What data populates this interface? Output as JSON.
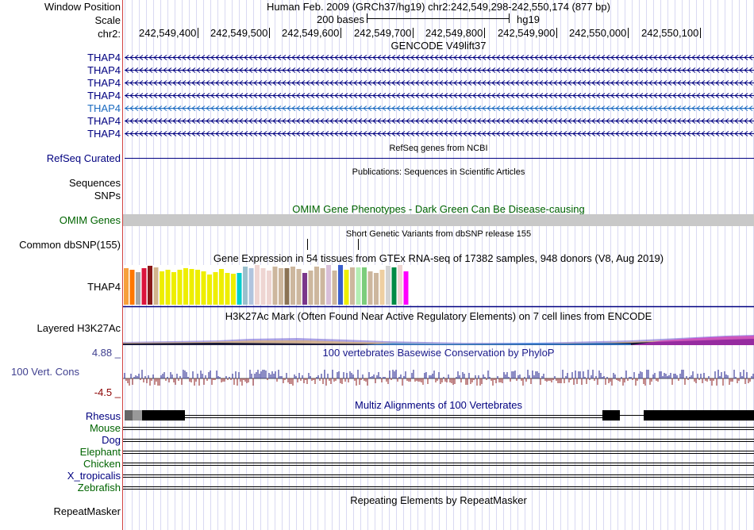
{
  "header": {
    "window_position_label": "Window Position",
    "scale_label": "Scale",
    "chr_label": "chr2:",
    "assembly_text": "Human Feb. 2009 (GRCh37/hg19)    chr2:242,549,298-242,550,174 (877 bp)",
    "scale_text": "200 bases",
    "scale_db": "hg19"
  },
  "ruler": {
    "positions": [
      "242,549,400",
      "242,549,500",
      "242,549,600",
      "242,549,700",
      "242,549,800",
      "242,549,900",
      "242,550,000",
      "242,550,100"
    ]
  },
  "tracks": {
    "gencode": {
      "title": "GENCODE V49lift37",
      "transcripts": [
        {
          "name": "THAP4",
          "color": "#000080"
        },
        {
          "name": "THAP4",
          "color": "#000080"
        },
        {
          "name": "THAP4",
          "color": "#000080"
        },
        {
          "name": "THAP4",
          "color": "#000080"
        },
        {
          "name": "THAP4",
          "color": "#1a6ac0"
        },
        {
          "name": "THAP4",
          "color": "#000080"
        },
        {
          "name": "THAP4",
          "color": "#000080"
        }
      ]
    },
    "refseq": {
      "label": "RefSeq Curated",
      "title": "RefSeq genes from NCBI"
    },
    "publications": {
      "title": "Publications: Sequences in Scientific Articles",
      "labels": [
        "Sequences",
        "SNPs"
      ]
    },
    "omim": {
      "label": "OMIM Genes",
      "title": "OMIM Gene Phenotypes - Dark Green Can Be Disease-causing"
    },
    "dbsnp": {
      "label": "Common dbSNP(155)",
      "title": "Short Genetic Variants from dbSNP release 155"
    },
    "gtex": {
      "label": "THAP4",
      "title": "Gene Expression in 54 tissues from GTEx RNA-seq of 17382 samples, 948 donors (V8, Aug 2019)",
      "bars": [
        {
          "color": "#f7a03c",
          "value": 46
        },
        {
          "color": "#ff7700",
          "value": 44
        },
        {
          "color": "#a6a6a6",
          "value": 41
        },
        {
          "color": "#dc143c",
          "value": 46
        },
        {
          "color": "#8b1a1a",
          "value": 49
        },
        {
          "color": "#d2b48c",
          "value": 47
        },
        {
          "color": "#eeee00",
          "value": 42
        },
        {
          "color": "#eeee00",
          "value": 44
        },
        {
          "color": "#eeee00",
          "value": 41
        },
        {
          "color": "#eeee00",
          "value": 44
        },
        {
          "color": "#eeee00",
          "value": 46
        },
        {
          "color": "#eeee00",
          "value": 45
        },
        {
          "color": "#eeee00",
          "value": 44
        },
        {
          "color": "#eeee00",
          "value": 42
        },
        {
          "color": "#eeee00",
          "value": 38
        },
        {
          "color": "#eeee00",
          "value": 41
        },
        {
          "color": "#eeee00",
          "value": 45
        },
        {
          "color": "#eeee00",
          "value": 40
        },
        {
          "color": "#eeee00",
          "value": 39
        },
        {
          "color": "#00cdcd",
          "value": 40
        },
        {
          "color": "#9ac0cd",
          "value": 48
        },
        {
          "color": "#b0c4de",
          "value": 46
        },
        {
          "color": "#eed5d2",
          "value": 50
        },
        {
          "color": "#eed5d2",
          "value": 46
        },
        {
          "color": "#eed5d2",
          "value": 43
        },
        {
          "color": "#cdb79e",
          "value": 48
        },
        {
          "color": "#cdb79e",
          "value": 46
        },
        {
          "color": "#8b7355",
          "value": 46
        },
        {
          "color": "#cdb79e",
          "value": 48
        },
        {
          "color": "#cdb79e",
          "value": 45
        },
        {
          "color": "#7a378b",
          "value": 40
        },
        {
          "color": "#cdb79e",
          "value": 43
        },
        {
          "color": "#cdb79e",
          "value": 48
        },
        {
          "color": "#cdb79e",
          "value": 46
        },
        {
          "color": "#d8bfd8",
          "value": 50
        },
        {
          "color": "#cdb79e",
          "value": 43
        },
        {
          "color": "#3a5fcd",
          "value": 50
        },
        {
          "color": "#eeee00",
          "value": 44
        },
        {
          "color": "#cdb79e",
          "value": 47
        },
        {
          "color": "#b4eeb4",
          "value": 47
        },
        {
          "color": "#7ccd7c",
          "value": 47
        },
        {
          "color": "#cdb79e",
          "value": 42
        },
        {
          "color": "#cdb79e",
          "value": 40
        },
        {
          "color": "#eecfa1",
          "value": 44
        },
        {
          "color": "#d3d3d3",
          "value": 49
        },
        {
          "color": "#008b45",
          "value": 47
        },
        {
          "color": "#eed5d2",
          "value": 50
        },
        {
          "color": "#ff00ff",
          "value": 42
        }
      ]
    },
    "h3k27ac": {
      "label": "Layered H3K27Ac",
      "title": "H3K27Ac Mark (Often Found Near Active Regulatory Elements) on 7 cell lines from ENCODE"
    },
    "conservation": {
      "label": "100 Vert. Cons",
      "title": "100 vertebrates Basewise Conservation by PhyloP",
      "max_label": "4.88 _",
      "min_label": "-4.5 _"
    },
    "multiz": {
      "title": "Multiz Alignments of 100 Vertebrates",
      "species": [
        {
          "name": "Rhesus",
          "color": "#000080"
        },
        {
          "name": "Mouse",
          "color": "#006400"
        },
        {
          "name": "Dog",
          "color": "#000080"
        },
        {
          "name": "Elephant",
          "color": "#006400"
        },
        {
          "name": "Chicken",
          "color": "#006400"
        },
        {
          "name": "X_tropicalis",
          "color": "#000080"
        },
        {
          "name": "Zebrafish",
          "color": "#006400"
        }
      ]
    },
    "repeatmasker": {
      "label": "RepeatMasker",
      "title": "Repeating Elements by RepeatMasker"
    }
  }
}
